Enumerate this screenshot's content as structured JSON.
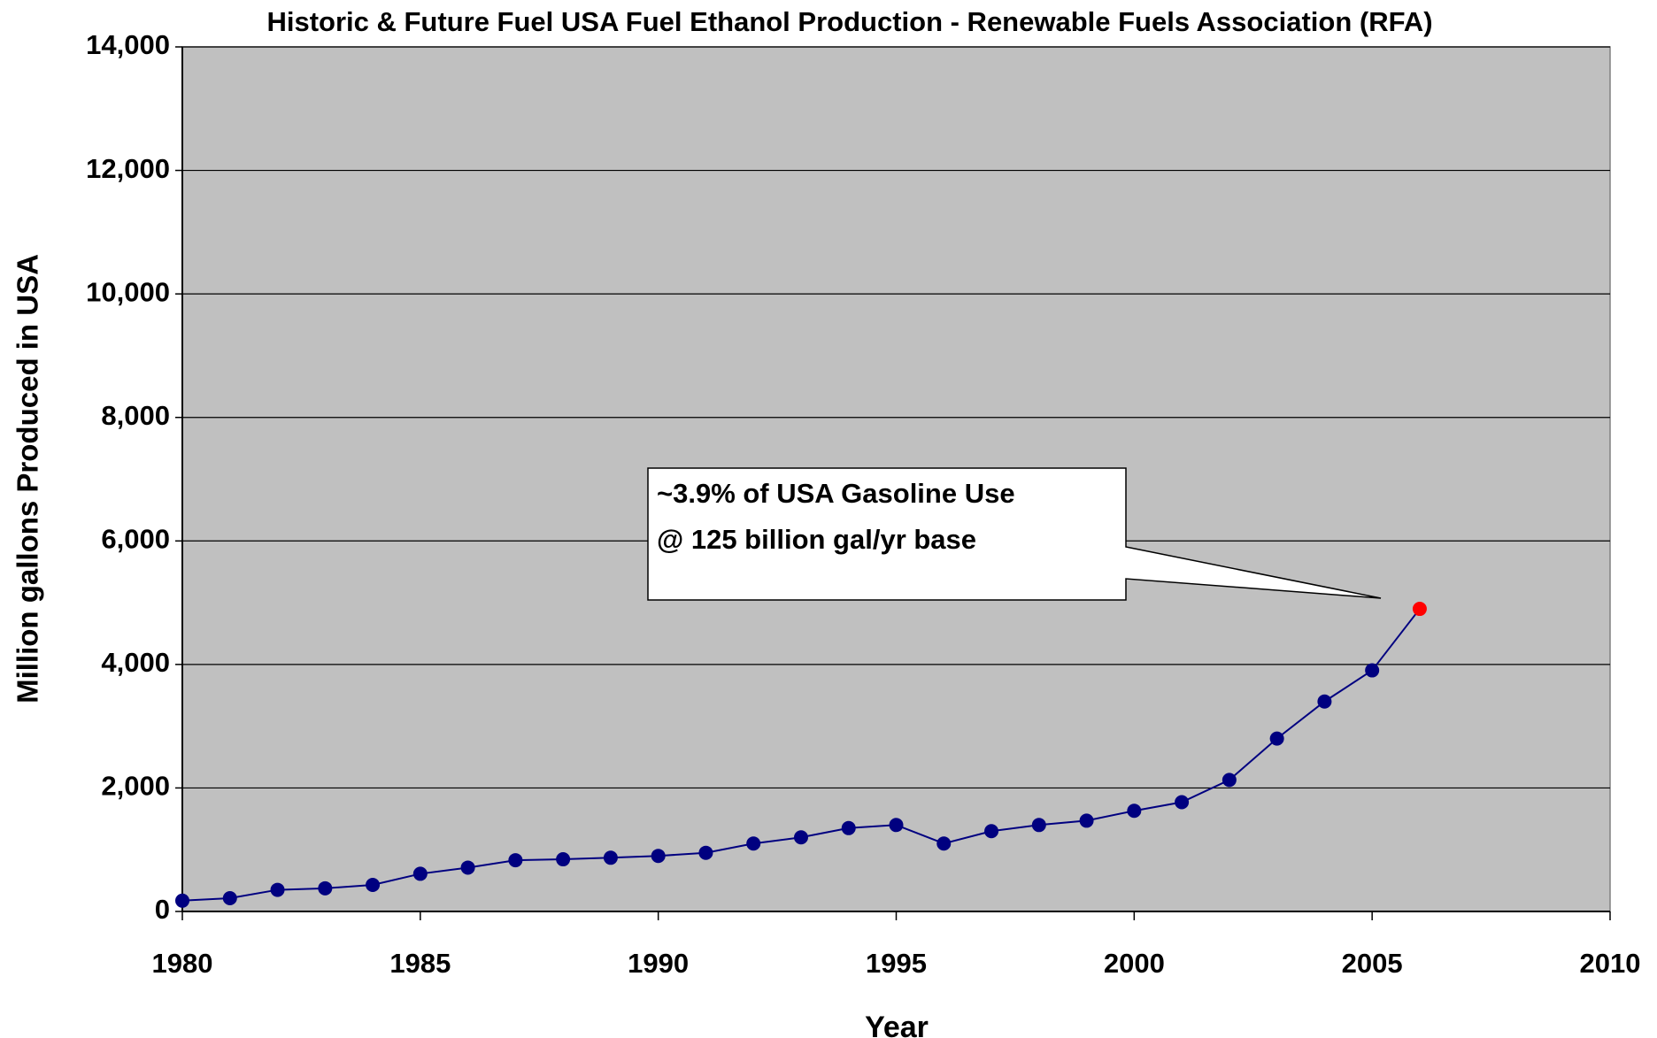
{
  "chart_data": {
    "type": "line",
    "title": "Historic & Future Fuel USA Fuel Ethanol  Production - Renewable Fuels Association (RFA)",
    "x_label": "Year",
    "y_label": "Million gallons Produced in USA",
    "annotation": [
      "~3.9% of USA Gasoline Use",
      "@ 125 billion gal/yr base"
    ],
    "x": [
      1980,
      1981,
      1982,
      1983,
      1984,
      1985,
      1986,
      1987,
      1988,
      1989,
      1990,
      1991,
      1992,
      1993,
      1994,
      1995,
      1996,
      1997,
      1998,
      1999,
      2000,
      2001,
      2002,
      2003,
      2004,
      2005,
      2006
    ],
    "series": [
      {
        "color": "#000080",
        "values": [
          175,
          215,
          350,
          375,
          430,
          610,
          710,
          830,
          845,
          870,
          900,
          950,
          1100,
          1200,
          1350,
          1400,
          1100,
          1300,
          1400,
          1470,
          1630,
          1770,
          2130,
          2800,
          3400,
          3904,
          4900
        ],
        "marker_colors": [
          "#000080",
          "#000080",
          "#000080",
          "#000080",
          "#000080",
          "#000080",
          "#000080",
          "#000080",
          "#000080",
          "#000080",
          "#000080",
          "#000080",
          "#000080",
          "#000080",
          "#000080",
          "#000080",
          "#000080",
          "#000080",
          "#000080",
          "#000080",
          "#000080",
          "#000080",
          "#000080",
          "#000080",
          "#000080",
          "#000080",
          "#ff0000"
        ]
      }
    ],
    "xlim": [
      1980,
      2010
    ],
    "xticks": [
      1980,
      1985,
      1990,
      1995,
      2000,
      2005,
      2010
    ],
    "ylim": [
      0,
      14000
    ],
    "yticks": [
      0,
      {
        "value": 2000,
        "label": "2,000"
      },
      {
        "value": 4000,
        "label": "4,000"
      },
      {
        "value": 6000,
        "label": "6,000"
      },
      {
        "value": 8000,
        "label": "8,000"
      },
      {
        "value": 10000,
        "label": "10,000"
      },
      {
        "value": 12000,
        "label": "12,000"
      },
      {
        "value": 14000,
        "label": "14,000"
      }
    ],
    "grid": true,
    "plot_background": "#c0c0c0"
  }
}
